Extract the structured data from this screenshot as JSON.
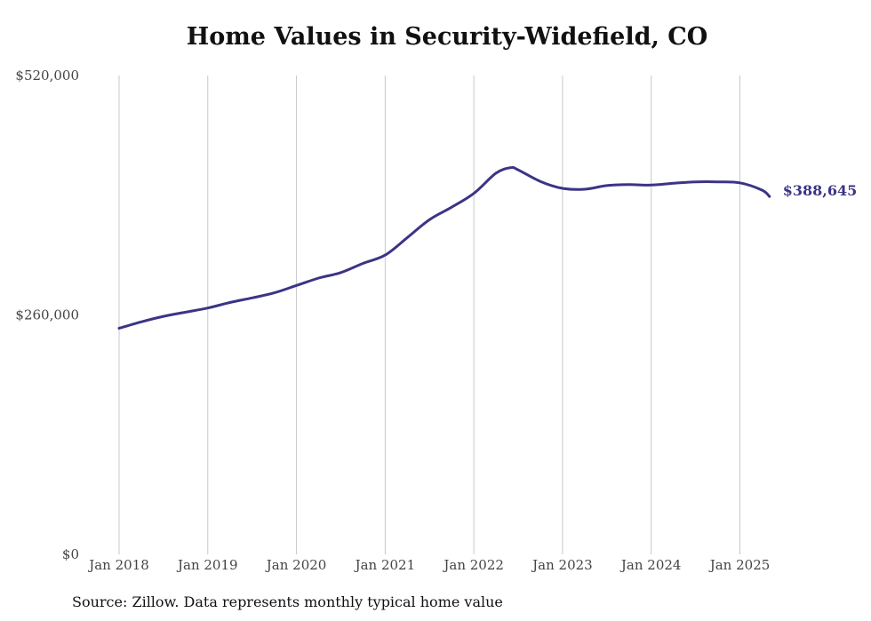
{
  "chart_data": {
    "type": "line",
    "title": "Home Values in Security-Widefield, CO",
    "source": "Source: Zillow. Data represents monthly typical home value",
    "ylim": [
      0,
      520000
    ],
    "yticks": [
      {
        "value": 0,
        "label": "$0"
      },
      {
        "value": 260000,
        "label": "$260,000"
      },
      {
        "value": 520000,
        "label": "$520,000"
      }
    ],
    "xticks": [
      {
        "date": "2018-01",
        "label": "Jan 2018"
      },
      {
        "date": "2019-01",
        "label": "Jan 2019"
      },
      {
        "date": "2020-01",
        "label": "Jan 2020"
      },
      {
        "date": "2021-01",
        "label": "Jan 2021"
      },
      {
        "date": "2022-01",
        "label": "Jan 2022"
      },
      {
        "date": "2023-01",
        "label": "Jan 2023"
      },
      {
        "date": "2024-01",
        "label": "Jan 2024"
      },
      {
        "date": "2025-01",
        "label": "Jan 2025"
      }
    ],
    "grid": {
      "vertical": true,
      "horizontal": false
    },
    "line_color": "#3b3486",
    "end_label": "$388,645",
    "series": [
      {
        "x": [
          "2018-01",
          "2018-04",
          "2018-07",
          "2018-10",
          "2019-01",
          "2019-04",
          "2019-07",
          "2019-10",
          "2020-01",
          "2020-04",
          "2020-07",
          "2020-10",
          "2021-01",
          "2021-04",
          "2021-07",
          "2021-10",
          "2022-01",
          "2022-04",
          "2022-06",
          "2022-07",
          "2022-10",
          "2023-01",
          "2023-04",
          "2023-07",
          "2023-10",
          "2024-01",
          "2024-04",
          "2024-07",
          "2024-10",
          "2025-01",
          "2025-04",
          "2025-05"
        ],
        "y": [
          245500,
          252500,
          258500,
          263000,
          267500,
          273500,
          278500,
          284000,
          292000,
          300000,
          306000,
          316000,
          325000,
          344000,
          363500,
          377000,
          392000,
          414000,
          420000,
          417500,
          405000,
          397500,
          396500,
          400500,
          401500,
          401000,
          403000,
          404500,
          404500,
          403500,
          395500,
          388645
        ]
      }
    ]
  }
}
